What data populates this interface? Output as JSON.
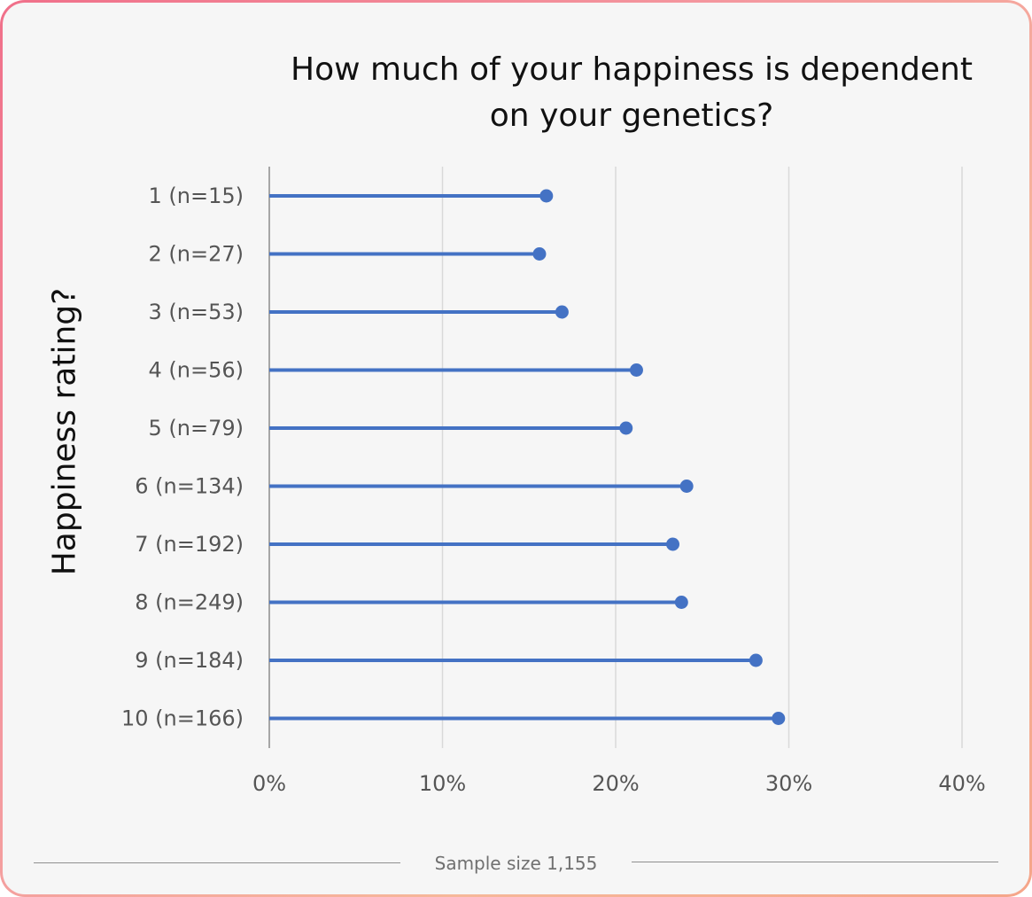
{
  "title_lines": [
    "How much of your happiness is dependent",
    "on your genetics?"
  ],
  "footer_note": "Sample size 1,155",
  "chart_data": {
    "type": "lollipop",
    "title": "How much of your happiness is dependent on your genetics?",
    "ylabel": "Happiness rating?",
    "xlabel": "",
    "xlim": [
      0,
      40
    ],
    "x_ticks": [
      0,
      10,
      20,
      30,
      40
    ],
    "x_tick_labels": [
      "0%",
      "10%",
      "20%",
      "30%",
      "40%"
    ],
    "grid": "vertical",
    "colors": {
      "series": "#4472c4",
      "grid": "#d9d9d9",
      "axis": "#8c8c8c"
    },
    "categories": [
      "1 (n=15)",
      "2 (n=27)",
      "3 (n=53)",
      "4 (n=56)",
      "5 (n=79)",
      "6 (n=134)",
      "7 (n=192)",
      "8 (n=249)",
      "9 (n=184)",
      "10 (n=166)"
    ],
    "values": [
      16.0,
      15.6,
      16.9,
      21.2,
      20.6,
      24.1,
      23.3,
      23.8,
      28.1,
      29.4
    ]
  }
}
